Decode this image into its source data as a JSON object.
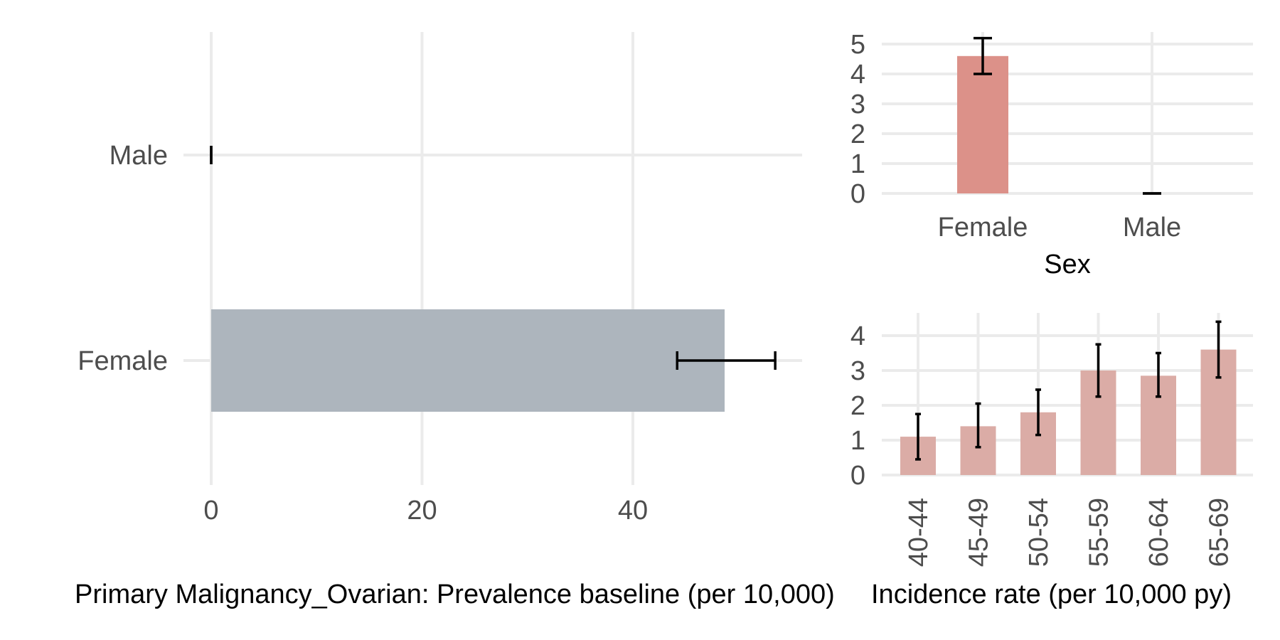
{
  "chart_data": [
    {
      "id": "prevalence",
      "type": "bar",
      "orientation": "horizontal",
      "categories": [
        "Female",
        "Male"
      ],
      "values": [
        48.7,
        0
      ],
      "ci_lower": [
        44.2,
        0
      ],
      "ci_upper": [
        53.5,
        0
      ],
      "xlim": [
        0,
        56
      ],
      "xticks": [
        "0",
        "20",
        "40"
      ],
      "xtick_values": [
        0,
        20,
        40
      ],
      "xlabel": "Primary Malignancy_Ovarian: Prevalence baseline (per 10,000)",
      "ylabel": "",
      "grid": true,
      "bar_color": "#adb5bd"
    },
    {
      "id": "incidence_sex",
      "type": "bar",
      "categories": [
        "Female",
        "Male"
      ],
      "values": [
        4.6,
        0
      ],
      "ci_lower": [
        4.0,
        0
      ],
      "ci_upper": [
        5.2,
        0
      ],
      "ylim": [
        0,
        5.3
      ],
      "yticks": [
        "0",
        "1",
        "2",
        "3",
        "4",
        "5"
      ],
      "ytick_values": [
        0,
        1,
        2,
        3,
        4,
        5
      ],
      "xlabel": "Sex",
      "ylabel": "",
      "grid": true,
      "bar_color": "#dc9189"
    },
    {
      "id": "incidence_age",
      "type": "bar",
      "categories": [
        "40-44",
        "45-49",
        "50-54",
        "55-59",
        "60-64",
        "65-69"
      ],
      "values": [
        1.1,
        1.4,
        1.8,
        3.0,
        2.85,
        3.6
      ],
      "ci_lower": [
        0.45,
        0.8,
        1.15,
        2.25,
        2.25,
        2.8
      ],
      "ci_upper": [
        1.75,
        2.05,
        2.45,
        3.75,
        3.5,
        4.4
      ],
      "ylim": [
        0,
        4.7
      ],
      "yticks": [
        "0",
        "1",
        "2",
        "3",
        "4"
      ],
      "ytick_values": [
        0,
        1,
        2,
        3,
        4
      ],
      "xlabel": "Incidence rate (per 10,000 py)",
      "ylabel": "",
      "grid": true,
      "bar_color": "#dbaca6"
    }
  ]
}
